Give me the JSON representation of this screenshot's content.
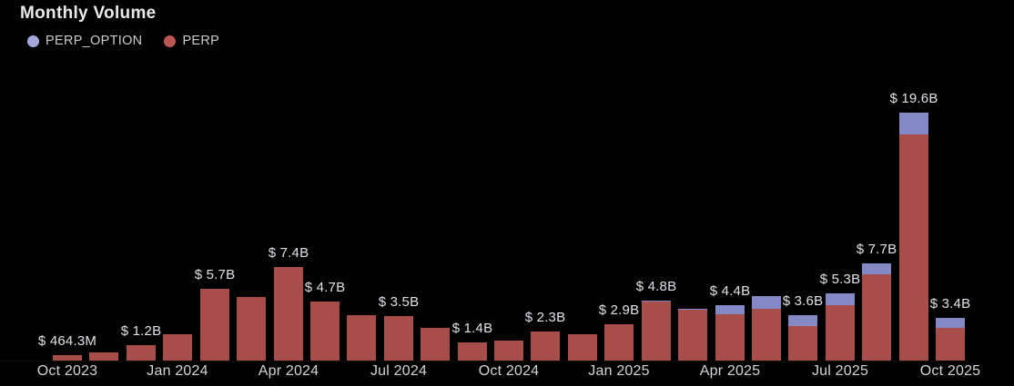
{
  "header": {
    "title": "Monthly Volume"
  },
  "legend": [
    {
      "name": "PERP_OPTION",
      "color": "#a5a8dc"
    },
    {
      "name": "PERP",
      "color": "#bd5752"
    }
  ],
  "chart_data": {
    "type": "bar",
    "stacked": true,
    "title": "Monthly Volume",
    "grid": false,
    "legend_position": "top-left",
    "ylim": [
      0,
      21.5
    ],
    "x_tick_interval": 3,
    "x": [
      "Oct 2023",
      "Nov 2023",
      "Dec 2023",
      "Jan 2024",
      "Feb 2024",
      "Mar 2024",
      "Apr 2024",
      "May 2024",
      "Jun 2024",
      "Jul 2024",
      "Aug 2024",
      "Sep 2024",
      "Oct 2024",
      "Nov 2024",
      "Dec 2024",
      "Jan 2025",
      "Feb 2025",
      "Mar 2025",
      "Apr 2025",
      "May 2025",
      "Jun 2025",
      "Jul 2025",
      "Aug 2025",
      "Sep 2025",
      "Oct 2025"
    ],
    "x_tick_labels_shown": [
      "Oct 2023",
      "Jan 2024",
      "Apr 2024",
      "Jul 2024",
      "Oct 2024",
      "Jan 2025",
      "Apr 2025",
      "Jul 2025",
      "Oct 2025"
    ],
    "series": [
      {
        "name": "PERP",
        "color": "#a84e4a",
        "values": [
          0.4643,
          0.65,
          1.2,
          2.1,
          5.7,
          5.0,
          7.4,
          4.7,
          3.6,
          3.5,
          2.6,
          1.4,
          1.55,
          2.3,
          2.1,
          2.9,
          4.7,
          4.0,
          3.65,
          4.1,
          2.75,
          4.4,
          6.85,
          17.9,
          2.6
        ]
      },
      {
        "name": "PERP_OPTION",
        "color": "#8489c6",
        "values": [
          0,
          0,
          0,
          0,
          0,
          0,
          0,
          0,
          0,
          0,
          0,
          0,
          0,
          0,
          0,
          0,
          0.1,
          0.1,
          0.75,
          1.0,
          0.85,
          0.9,
          0.85,
          1.7,
          0.8
        ]
      }
    ],
    "totals_billions": [
      0.4643,
      0.65,
      1.2,
      2.1,
      5.7,
      5.0,
      7.4,
      4.7,
      3.6,
      3.5,
      2.6,
      1.4,
      1.55,
      2.3,
      2.1,
      2.9,
      4.8,
      4.1,
      4.4,
      5.1,
      3.6,
      5.3,
      7.7,
      19.6,
      3.4
    ],
    "bar_value_labels": [
      "$ 464.3M",
      null,
      "$ 1.2B",
      null,
      "$ 5.7B",
      null,
      "$ 7.4B",
      "$ 4.7B",
      null,
      "$ 3.5B",
      null,
      "$ 1.4B",
      null,
      "$ 2.3B",
      null,
      "$ 2.9B",
      "$ 4.8B",
      null,
      "$ 4.4B",
      null,
      "$ 3.6B",
      "$ 5.3B",
      "$ 7.7B",
      "$ 19.6B",
      "$ 3.4B"
    ]
  }
}
